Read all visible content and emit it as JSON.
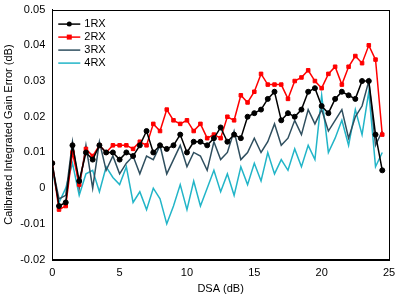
{
  "chart_data": {
    "type": "line",
    "x_label": "DSA (dB)",
    "y_label": "Calibrated Integrated Gain Error (dB)",
    "x": [
      0,
      0.5,
      1,
      1.5,
      2,
      2.5,
      3,
      3.5,
      4,
      4.5,
      5,
      5.5,
      6,
      6.5,
      7,
      7.5,
      8,
      8.5,
      9,
      9.5,
      10,
      10.5,
      11,
      11.5,
      12,
      12.5,
      13,
      13.5,
      14,
      14.5,
      15,
      15.5,
      16,
      16.5,
      17,
      17.5,
      18,
      18.5,
      19,
      19.5,
      20,
      20.5,
      21,
      21.5,
      22,
      22.5,
      23,
      23.5,
      24,
      24.5
    ],
    "series": [
      {
        "name": "1RX",
        "color": "#000000",
        "marker": "circle",
        "values": [
          0.007,
          -0.005,
          -0.004,
          0.012,
          0.002,
          0.01,
          0.008,
          0.012,
          0.01,
          0.01,
          0.008,
          0.01,
          0.009,
          0.012,
          0.016,
          0.01,
          0.012,
          0.011,
          0.012,
          0.015,
          0.01,
          0.013,
          0.013,
          0.012,
          0.014,
          0.017,
          0.013,
          0.015,
          0.014,
          0.02,
          0.021,
          0.022,
          0.025,
          0.027,
          0.019,
          0.021,
          0.02,
          0.022,
          0.027,
          0.028,
          0.023,
          0.021,
          0.025,
          0.027,
          0.026,
          0.025,
          0.03,
          0.03,
          0.015,
          0.005
        ]
      },
      {
        "name": "2RX",
        "color": "#ff0000",
        "marker": "square",
        "values": [
          0.007,
          -0.006,
          -0.005,
          0.01,
          0.001,
          0.011,
          0.009,
          0.012,
          0.01,
          0.012,
          0.012,
          0.012,
          0.011,
          0.013,
          0.012,
          0.018,
          0.016,
          0.022,
          0.019,
          0.018,
          0.019,
          0.016,
          0.018,
          0.014,
          0.015,
          0.014,
          0.02,
          0.019,
          0.026,
          0.024,
          0.027,
          0.032,
          0.029,
          0.029,
          0.029,
          0.025,
          0.03,
          0.031,
          0.033,
          0.03,
          0.028,
          0.032,
          0.034,
          0.029,
          0.034,
          0.037,
          0.035,
          0.04,
          0.036,
          0.015
        ]
      },
      {
        "name": "3RX",
        "color": "#2f4f5f",
        "marker": "none",
        "values": [
          0.006,
          -0.003,
          -0.002,
          0.013,
          0.0,
          0.012,
          0.0,
          0.013,
          0.005,
          0.009,
          0.004,
          0.007,
          0.009,
          0.004,
          0.009,
          0.008,
          0.012,
          0.004,
          0.008,
          0.012,
          0.006,
          0.01,
          0.009,
          0.005,
          0.013,
          0.008,
          0.01,
          0.016,
          0.008,
          0.01,
          0.014,
          0.01,
          0.013,
          0.018,
          0.012,
          0.014,
          0.019,
          0.015,
          0.022,
          0.018,
          0.022,
          0.016,
          0.019,
          0.022,
          0.014,
          0.02,
          0.023,
          0.03,
          0.012,
          0.016
        ]
      },
      {
        "name": "4RX",
        "color": "#22b5c8",
        "marker": "none",
        "values": [
          0.005,
          -0.004,
          0.0,
          0.007,
          -0.002,
          0.004,
          0.005,
          -0.001,
          0.006,
          0.003,
          0.001,
          0.006,
          -0.004,
          -0.001,
          -0.006,
          0.0,
          -0.003,
          -0.01,
          -0.005,
          0.001,
          -0.006,
          0.002,
          -0.005,
          0.0,
          0.005,
          -0.001,
          0.004,
          -0.002,
          0.006,
          0.001,
          0.007,
          0.002,
          0.01,
          0.004,
          0.008,
          0.005,
          0.011,
          0.006,
          0.012,
          0.008,
          0.026,
          0.01,
          0.014,
          0.019,
          0.012,
          0.022,
          0.015,
          0.027,
          0.006,
          0.01
        ]
      }
    ],
    "xlim": [
      0,
      25
    ],
    "xticks": [
      0,
      5,
      10,
      15,
      20,
      25
    ],
    "ylim": [
      -0.02,
      0.05
    ],
    "yticks": [
      -0.02,
      -0.01,
      0,
      0.01,
      0.02,
      0.03,
      0.04,
      0.05
    ],
    "grid": false,
    "legend": "upper left"
  }
}
